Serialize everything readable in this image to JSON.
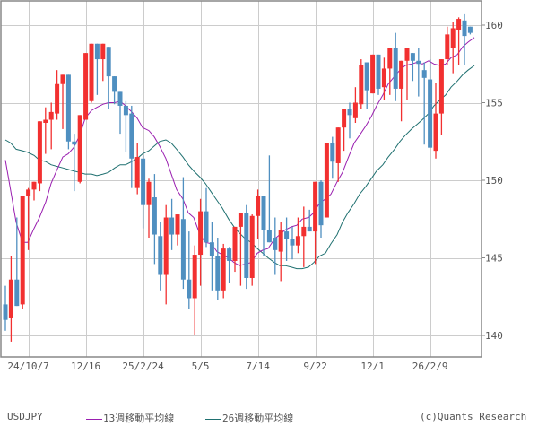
{
  "chart_data": {
    "type": "candlestick",
    "title": "USDJPY",
    "symbol": "USDJPY",
    "xlabel": "",
    "ylabel": "",
    "ylim": [
      138.7,
      161.6
    ],
    "y_ticks": [
      140,
      145,
      150,
      155,
      160
    ],
    "x_tick_labels": [
      "24/10/7",
      "12/16",
      "25/2/24",
      "5/5",
      "7/14",
      "9/22",
      "12/1",
      "26/2/9"
    ],
    "x_tick_candle_index": [
      4,
      14,
      24,
      34,
      44,
      54,
      64,
      74
    ],
    "grid": true,
    "up_color": "#f23030",
    "down_color": "#4f8fc0",
    "legend": [
      {
        "label": "13週移動平均線",
        "color": "#9a1fb0"
      },
      {
        "label": "26週移動平均線",
        "color": "#1f7070"
      }
    ],
    "candles": [
      [
        142.0,
        143.2,
        140.3,
        141.0
      ],
      [
        141.1,
        145.1,
        139.6,
        143.6
      ],
      [
        143.6,
        147.6,
        143.3,
        141.9
      ],
      [
        142.0,
        149.0,
        141.7,
        149.0
      ],
      [
        149.0,
        149.5,
        145.5,
        149.4
      ],
      [
        149.4,
        149.9,
        148.7,
        149.9
      ],
      [
        149.8,
        153.0,
        149.3,
        153.8
      ],
      [
        153.7,
        154.7,
        151.7,
        153.9
      ],
      [
        153.9,
        155.0,
        152.0,
        154.4
      ],
      [
        154.3,
        157.1,
        153.9,
        156.2
      ],
      [
        156.2,
        156.5,
        153.3,
        156.8
      ],
      [
        156.8,
        155.0,
        152.0,
        152.5
      ],
      [
        152.5,
        153.0,
        149.3,
        152.3
      ],
      [
        149.9,
        154.1,
        149.8,
        154.2
      ],
      [
        153.9,
        157.3,
        154.0,
        158.2
      ],
      [
        155.1,
        158.8,
        155.0,
        158.8
      ],
      [
        158.8,
        158.5,
        155.5,
        157.8
      ],
      [
        157.8,
        158.2,
        156.4,
        158.8
      ],
      [
        158.6,
        158.4,
        154.6,
        156.7
      ],
      [
        156.7,
        156.0,
        154.9,
        155.7
      ],
      [
        155.7,
        155.0,
        153.0,
        154.8
      ],
      [
        154.8,
        155.1,
        151.8,
        154.2
      ],
      [
        154.3,
        154.8,
        149.5,
        151.4
      ],
      [
        149.5,
        152.4,
        149.1,
        151.5
      ],
      [
        151.4,
        151.6,
        146.9,
        148.4
      ],
      [
        148.4,
        150.1,
        146.3,
        149.9
      ],
      [
        148.9,
        150.4,
        144.6,
        146.5
      ],
      [
        146.4,
        147.3,
        142.9,
        143.9
      ],
      [
        143.9,
        148.4,
        142.0,
        147.6
      ],
      [
        147.6,
        148.8,
        145.5,
        146.5
      ],
      [
        146.5,
        147.8,
        145.8,
        147.8
      ],
      [
        147.5,
        150.2,
        143.0,
        143.6
      ],
      [
        143.6,
        146.7,
        141.7,
        142.4
      ],
      [
        142.4,
        145.8,
        140.0,
        145.2
      ],
      [
        145.2,
        148.8,
        143.2,
        148.0
      ],
      [
        148.0,
        149.5,
        145.7,
        146.0
      ],
      [
        146.0,
        147.3,
        142.9,
        145.1
      ],
      [
        145.1,
        146.3,
        142.3,
        142.9
      ],
      [
        142.9,
        145.9,
        142.4,
        145.6
      ],
      [
        145.6,
        145.7,
        143.4,
        144.8
      ],
      [
        144.8,
        146.7,
        144.1,
        147.0
      ],
      [
        147.0,
        147.9,
        143.2,
        147.9
      ],
      [
        147.9,
        148.4,
        143.0,
        143.7
      ],
      [
        143.7,
        147.8,
        143.2,
        147.7
      ],
      [
        147.7,
        149.4,
        146.2,
        149.0
      ],
      [
        149.0,
        148.6,
        145.1,
        146.8
      ],
      [
        146.8,
        151.6,
        146.3,
        146.0
      ],
      [
        146.3,
        147.6,
        143.9,
        145.5
      ],
      [
        145.4,
        147.3,
        143.5,
        146.8
      ],
      [
        146.7,
        147.6,
        144.8,
        146.2
      ],
      [
        146.2,
        147.0,
        144.9,
        145.8
      ],
      [
        145.8,
        147.6,
        145.3,
        146.4
      ],
      [
        146.4,
        148.3,
        144.4,
        147.0
      ],
      [
        147.0,
        148.1,
        146.9,
        146.7
      ],
      [
        146.7,
        148.7,
        144.6,
        149.9
      ],
      [
        149.9,
        150.0,
        146.3,
        147.1
      ],
      [
        147.6,
        150.2,
        147.7,
        152.4
      ],
      [
        152.4,
        152.8,
        150.1,
        151.2
      ],
      [
        151.1,
        152.8,
        149.9,
        153.4
      ],
      [
        153.4,
        154.6,
        151.9,
        154.6
      ],
      [
        154.6,
        155.0,
        152.7,
        154.2
      ],
      [
        154.0,
        156.0,
        153.7,
        155.0
      ],
      [
        154.9,
        157.8,
        154.6,
        157.4
      ],
      [
        157.6,
        157.0,
        154.6,
        155.8
      ],
      [
        155.6,
        157.7,
        156.6,
        158.1
      ],
      [
        158.1,
        158.1,
        155.5,
        155.9
      ],
      [
        156.0,
        157.9,
        155.2,
        157.2
      ],
      [
        157.2,
        158.0,
        155.5,
        158.5
      ],
      [
        158.5,
        159.5,
        155.1,
        155.9
      ],
      [
        155.9,
        157.3,
        153.8,
        157.7
      ],
      [
        157.7,
        158.0,
        155.2,
        158.5
      ],
      [
        158.2,
        158.2,
        156.4,
        157.7
      ],
      [
        157.7,
        158.5,
        155.4,
        157.5
      ],
      [
        157.1,
        157.6,
        152.3,
        156.6
      ],
      [
        156.5,
        157.8,
        152.9,
        152.1
      ],
      [
        151.9,
        156.3,
        151.4,
        154.3
      ],
      [
        154.3,
        157.6,
        152.9,
        157.8
      ],
      [
        157.8,
        159.9,
        157.4,
        159.4
      ],
      [
        158.5,
        160.2,
        156.9,
        159.8
      ],
      [
        159.7,
        160.5,
        157.4,
        160.4
      ],
      [
        160.3,
        160.7,
        157.4,
        159.3
      ],
      [
        159.9,
        159.9,
        159.4,
        159.5
      ]
    ],
    "ma13": [
      [
        6,
        151.3
      ],
      [
        12,
        149.3
      ],
      [
        18,
        147.3
      ],
      [
        25,
        146.0
      ],
      [
        31,
        146.0
      ],
      [
        38,
        146.9
      ],
      [
        44,
        147.6
      ],
      [
        51,
        148.6
      ],
      [
        57,
        149.8
      ],
      [
        63,
        150.6
      ],
      [
        70,
        151.5
      ],
      [
        76,
        151.7
      ],
      [
        82,
        152.1
      ],
      [
        89,
        152.9
      ],
      [
        95,
        154.0
      ],
      [
        102,
        154.5
      ],
      [
        108,
        154.7
      ],
      [
        115,
        154.9
      ],
      [
        121,
        155.0
      ],
      [
        128,
        155.0
      ],
      [
        134,
        155.1
      ],
      [
        140,
        154.8
      ],
      [
        147,
        154.4
      ],
      [
        153,
        154.0
      ],
      [
        159,
        153.4
      ],
      [
        166,
        153.2
      ],
      [
        172,
        152.8
      ],
      [
        178,
        152.2
      ],
      [
        185,
        151.4
      ],
      [
        191,
        150.4
      ],
      [
        197,
        149.4
      ],
      [
        204,
        148.8
      ],
      [
        210,
        147.9
      ],
      [
        216,
        147.6
      ],
      [
        223,
        146.5
      ],
      [
        229,
        146.0
      ],
      [
        236,
        145.9
      ],
      [
        242,
        145.4
      ],
      [
        248,
        145.2
      ],
      [
        255,
        145.0
      ],
      [
        261,
        144.7
      ],
      [
        267,
        144.5
      ],
      [
        274,
        144.6
      ],
      [
        280,
        144.7
      ],
      [
        287,
        145.3
      ],
      [
        293,
        145.5
      ],
      [
        299,
        145.6
      ],
      [
        306,
        146.2
      ],
      [
        312,
        146.5
      ],
      [
        318,
        146.8
      ],
      [
        325,
        147.0
      ],
      [
        331,
        147.1
      ],
      [
        337,
        147.5
      ],
      [
        344,
        147.6
      ],
      [
        350,
        147.9
      ],
      [
        356,
        148.5
      ],
      [
        363,
        148.8
      ],
      [
        369,
        149.1
      ],
      [
        376,
        149.9
      ],
      [
        382,
        150.5
      ],
      [
        388,
        151.4
      ],
      [
        395,
        152.4
      ],
      [
        401,
        152.9
      ],
      [
        408,
        153.5
      ],
      [
        414,
        154.1
      ],
      [
        420,
        154.8
      ],
      [
        427,
        155.5
      ],
      [
        433,
        156.2
      ],
      [
        440,
        156.7
      ],
      [
        446,
        157.1
      ],
      [
        452,
        157.4
      ],
      [
        459,
        157.5
      ],
      [
        465,
        157.6
      ],
      [
        471,
        157.5
      ],
      [
        478,
        157.7
      ],
      [
        484,
        157.5
      ],
      [
        491,
        157.4
      ],
      [
        497,
        157.5
      ],
      [
        503,
        157.9
      ],
      [
        510,
        158.1
      ],
      [
        516,
        158.6
      ],
      [
        522,
        158.9
      ],
      [
        529,
        159.2
      ]
    ],
    "ma26": [
      [
        6,
        152.6
      ],
      [
        12,
        152.4
      ],
      [
        18,
        152.0
      ],
      [
        25,
        151.9
      ],
      [
        31,
        151.8
      ],
      [
        38,
        151.6
      ],
      [
        44,
        151.3
      ],
      [
        51,
        151.2
      ],
      [
        57,
        151.0
      ],
      [
        63,
        150.9
      ],
      [
        70,
        150.8
      ],
      [
        76,
        150.7
      ],
      [
        82,
        150.6
      ],
      [
        89,
        150.5
      ],
      [
        95,
        150.4
      ],
      [
        102,
        150.4
      ],
      [
        108,
        150.3
      ],
      [
        115,
        150.4
      ],
      [
        121,
        150.5
      ],
      [
        128,
        150.8
      ],
      [
        134,
        151.0
      ],
      [
        140,
        151.0
      ],
      [
        147,
        151.2
      ],
      [
        153,
        151.4
      ],
      [
        159,
        151.7
      ],
      [
        166,
        151.9
      ],
      [
        172,
        152.2
      ],
      [
        178,
        152.5
      ],
      [
        185,
        152.6
      ],
      [
        191,
        152.4
      ],
      [
        197,
        152.0
      ],
      [
        204,
        151.5
      ],
      [
        210,
        151.0
      ],
      [
        216,
        150.6
      ],
      [
        223,
        150.2
      ],
      [
        229,
        149.8
      ],
      [
        236,
        149.2
      ],
      [
        242,
        148.7
      ],
      [
        248,
        148.2
      ],
      [
        255,
        147.5
      ],
      [
        261,
        147.0
      ],
      [
        267,
        146.6
      ],
      [
        274,
        146.2
      ],
      [
        280,
        146.0
      ],
      [
        287,
        145.6
      ],
      [
        293,
        145.3
      ],
      [
        299,
        145.0
      ],
      [
        306,
        144.7
      ],
      [
        312,
        144.5
      ],
      [
        318,
        144.5
      ],
      [
        325,
        144.4
      ],
      [
        331,
        144.3
      ],
      [
        337,
        144.3
      ],
      [
        344,
        144.4
      ],
      [
        350,
        144.7
      ],
      [
        356,
        145.1
      ],
      [
        363,
        145.3
      ],
      [
        369,
        145.9
      ],
      [
        376,
        146.5
      ],
      [
        382,
        147.3
      ],
      [
        388,
        147.9
      ],
      [
        395,
        148.5
      ],
      [
        401,
        149.1
      ],
      [
        408,
        149.6
      ],
      [
        414,
        150.1
      ],
      [
        420,
        150.6
      ],
      [
        427,
        151.0
      ],
      [
        433,
        151.5
      ],
      [
        440,
        152.0
      ],
      [
        446,
        152.5
      ],
      [
        452,
        152.9
      ],
      [
        459,
        153.3
      ],
      [
        465,
        153.6
      ],
      [
        471,
        153.9
      ],
      [
        478,
        154.3
      ],
      [
        484,
        154.8
      ],
      [
        491,
        155.2
      ],
      [
        497,
        155.5
      ],
      [
        503,
        156.0
      ],
      [
        510,
        156.4
      ],
      [
        516,
        156.8
      ],
      [
        522,
        157.1
      ],
      [
        529,
        157.4
      ]
    ]
  },
  "footer": {
    "symbol": "USDJPY",
    "legend_ma13": "13週移動平均線",
    "legend_ma26": "26週移動平均線",
    "copyright": "(c)Quants Research"
  },
  "colors": {
    "up": "#f23030",
    "down": "#4f8fc0",
    "ma13": "#9a1fb0",
    "ma26": "#1f7070",
    "grid": "#cccccc",
    "frame": "#888888"
  }
}
